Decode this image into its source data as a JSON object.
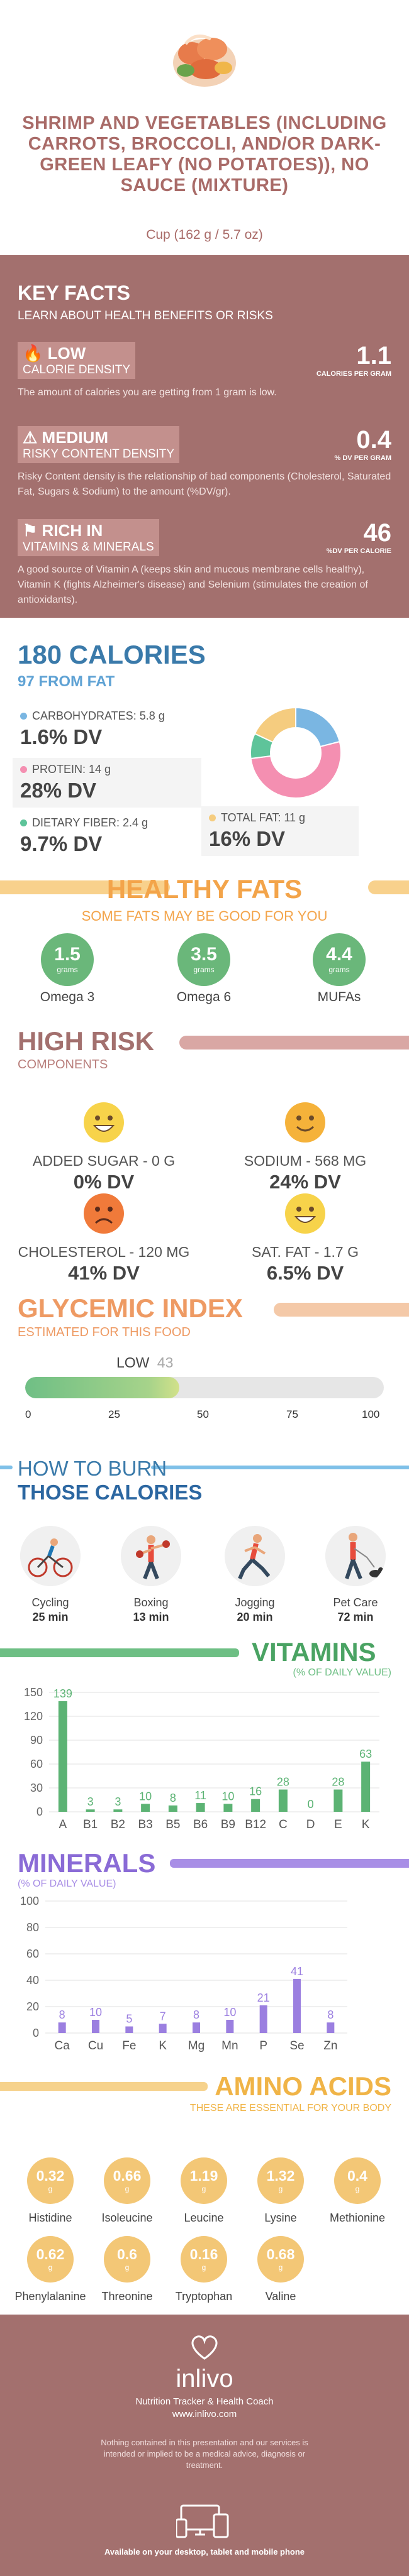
{
  "header": {
    "title": "SHRIMP AND VEGETABLES (INCLUDING CARROTS, BROCCOLI, AND/OR DARK-GREEN LEAFY (NO POTATOES)), NO SAUCE (MIXTURE)",
    "serving": "Cup (162 g / 5.7 oz)"
  },
  "key_facts": {
    "title": "KEY FACTS",
    "subtitle": "LEARN ABOUT HEALTH BENEFITS OR RISKS",
    "items": [
      {
        "level": "LOW",
        "label": "CALORIE DENSITY",
        "value": "1.1",
        "unit": "CALORIES PER GRAM",
        "icon": "flame-icon",
        "desc": "The amount of calories you are getting from 1 gram is low."
      },
      {
        "level": "MEDIUM",
        "label": "RISKY CONTENT DENSITY",
        "value": "0.4",
        "unit": "% DV PER GRAM",
        "icon": "warning-icon",
        "desc": "Risky Content density is the relationship of bad components (Cholesterol, Saturated Fat, Sugars & Sodium) to the amount (%DV/gr)."
      },
      {
        "level": "RICH IN",
        "label": "VITAMINS & MINERALS",
        "value": "46",
        "unit": "%DV PER CALORIE",
        "icon": "flag-icon",
        "desc": "A good source of Vitamin A (keeps skin and mucous membrane cells healthy), Vitamin K (fights Alzheimer's disease) and Selenium (stimulates the creation of antioxidants)."
      }
    ]
  },
  "calories": {
    "title": "180 CALORIES",
    "subtitle": "97 FROM FAT",
    "nutrients": [
      {
        "label": "CARBOHYDRATES: 5.8 g",
        "dv": "1.6% DV",
        "color": "#7ab6e2"
      },
      {
        "label": "PROTEIN: 14 g",
        "dv": "28% DV",
        "color": "#f48fb1"
      },
      {
        "label": "DIETARY FIBER: 2.4 g",
        "dv": "9.7% DV",
        "color": "#5ec49a"
      },
      {
        "label": "TOTAL FAT: 11 g",
        "dv": "16% DV",
        "color": "#f5cc7f"
      }
    ]
  },
  "chart_data": [
    {
      "type": "pie",
      "categories": [
        "Carbohydrates",
        "Protein",
        "Dietary Fiber",
        "Total Fat"
      ],
      "values": [
        21,
        52,
        9,
        18
      ],
      "colors": [
        "#7ab6e2",
        "#f48fb1",
        "#5ec49a",
        "#f5cc7f"
      ]
    },
    {
      "type": "bar",
      "title": "VITAMINS",
      "subtitle": "(% OF DAILY VALUE)",
      "categories": [
        "A",
        "B1",
        "B2",
        "B3",
        "B5",
        "B6",
        "B9",
        "B12",
        "C",
        "D",
        "E",
        "K"
      ],
      "values": [
        139,
        3,
        3,
        10,
        8,
        11,
        10,
        16,
        28,
        0,
        28,
        63
      ],
      "yticks": [
        0,
        30,
        60,
        90,
        120,
        150
      ],
      "ylim": [
        0,
        150
      ],
      "color": "#5cb374"
    },
    {
      "type": "bar",
      "title": "MINERALS",
      "subtitle": "(% OF DAILY VALUE)",
      "categories": [
        "Ca",
        "Cu",
        "Fe",
        "K",
        "Mg",
        "Mn",
        "P",
        "Se",
        "Zn"
      ],
      "values": [
        8,
        10,
        5,
        7,
        8,
        10,
        21,
        41,
        8
      ],
      "yticks": [
        0,
        20,
        40,
        60,
        80,
        100
      ],
      "ylim": [
        0,
        100
      ],
      "color": "#9b7fe0"
    }
  ],
  "healthy_fats": {
    "title": "HEALTHY FATS",
    "subtitle": "SOME FATS MAY BE GOOD FOR YOU",
    "unit": "grams",
    "items": [
      {
        "value": "1.5",
        "name": "Omega 3"
      },
      {
        "value": "3.5",
        "name": "Omega 6"
      },
      {
        "value": "4.4",
        "name": "MUFAs"
      }
    ]
  },
  "high_risk": {
    "title": "HIGH RISK",
    "subtitle": "COMPONENTS",
    "items": [
      {
        "label": "ADDED SUGAR - 0 g",
        "dv": "0% DV",
        "face": "happy",
        "color": "#f7d34a"
      },
      {
        "label": "SODIUM - 568 mg",
        "dv": "24% DV",
        "face": "smile",
        "color": "#f5b23a"
      },
      {
        "label": "CHOLESTEROL - 120 mg",
        "dv": "41% DV",
        "face": "sad",
        "color": "#f07a3a"
      },
      {
        "label": "SAT. FAT - 1.7 g",
        "dv": "6.5% DV",
        "face": "happy",
        "color": "#f7d34a"
      }
    ]
  },
  "glycemic": {
    "title": "GLYCEMIC INDEX",
    "subtitle": "ESTIMATED FOR THIS FOOD",
    "level": "LOW",
    "value": 43,
    "value_label": "43",
    "ticks": [
      "0",
      "25",
      "50",
      "75",
      "100"
    ]
  },
  "burn": {
    "title1": "HOW TO BURN",
    "title2": "THOSE CALORIES",
    "activities": [
      {
        "name": "Cycling",
        "time": "25 min",
        "icon": "cycling-icon"
      },
      {
        "name": "Boxing",
        "time": "13 min",
        "icon": "boxing-icon"
      },
      {
        "name": "Jogging",
        "time": "20 min",
        "icon": "jogging-icon"
      },
      {
        "name": "Pet Care",
        "time": "72 min",
        "icon": "pet-care-icon"
      }
    ]
  },
  "amino": {
    "title": "AMINO ACIDS",
    "subtitle": "THESE ARE ESSENTIAL FOR YOUR BODY",
    "unit": "g",
    "items": [
      {
        "value": "0.32",
        "name": "Histidine"
      },
      {
        "value": "0.66",
        "name": "Isoleucine"
      },
      {
        "value": "1.19",
        "name": "Leucine"
      },
      {
        "value": "1.32",
        "name": "Lysine"
      },
      {
        "value": "0.4",
        "name": "Methionine"
      },
      {
        "value": "0.62",
        "name": "Phenylalanine"
      },
      {
        "value": "0.6",
        "name": "Threonine"
      },
      {
        "value": "0.16",
        "name": "Tryptophan"
      },
      {
        "value": "0.68",
        "name": "Valine"
      }
    ]
  },
  "footer": {
    "brand": "inlivo",
    "tagline": "Nutrition Tracker & Health Coach",
    "url": "www.inlivo.com",
    "disclaimer": "Nothing contained in this presentation and our services is intended or implied to be a medical advice, diagnosis or treatment.",
    "available": "Available on your desktop, tablet and mobile phone"
  }
}
